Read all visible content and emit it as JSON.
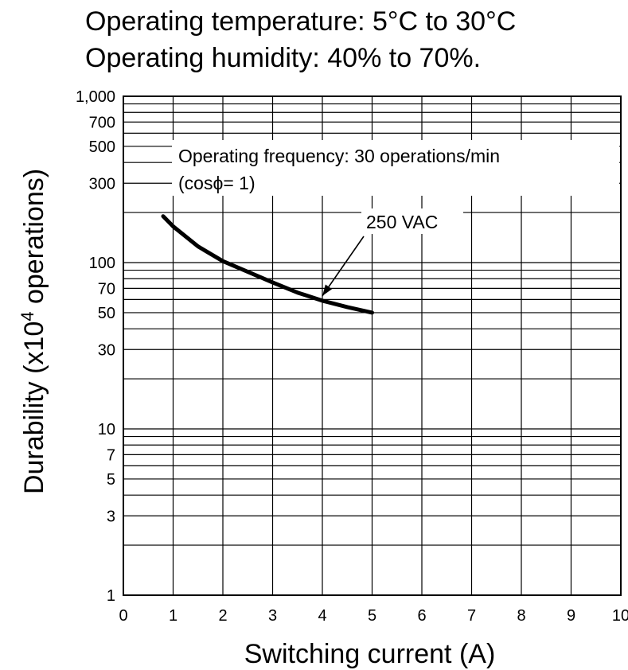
{
  "conditions": {
    "temperature": "Operating temperature: 5°C to 30°C",
    "humidity": "Operating humidity: 40% to 70%."
  },
  "chart_data": {
    "type": "line",
    "title": "",
    "xlabel": "Switching current (A)",
    "ylabel_prefix": "Durability (x10",
    "ylabel_exp": "4",
    "ylabel_suffix": " operations)",
    "ylabel": "Durability (x10^4 operations)",
    "x_scale": "linear",
    "y_scale": "log",
    "xlim": [
      0,
      10
    ],
    "ylim": [
      1,
      1000
    ],
    "grid": true,
    "x_ticks": [
      0,
      1,
      2,
      3,
      4,
      5,
      6,
      7,
      8,
      9,
      10
    ],
    "y_ticks": [
      {
        "value": 1,
        "label": "1"
      },
      {
        "value": 3,
        "label": "3"
      },
      {
        "value": 5,
        "label": "5"
      },
      {
        "value": 7,
        "label": "7"
      },
      {
        "value": 10,
        "label": "10"
      },
      {
        "value": 30,
        "label": "30"
      },
      {
        "value": 50,
        "label": "50"
      },
      {
        "value": 70,
        "label": "70"
      },
      {
        "value": 100,
        "label": "100"
      },
      {
        "value": 300,
        "label": "300"
      },
      {
        "value": 500,
        "label": "500"
      },
      {
        "value": 700,
        "label": "700"
      },
      {
        "value": 1000,
        "label": "1,000"
      }
    ],
    "y_gridlines": [
      1,
      2,
      3,
      4,
      5,
      6,
      7,
      8,
      9,
      10,
      20,
      30,
      40,
      50,
      60,
      70,
      80,
      90,
      100,
      200,
      300,
      400,
      500,
      600,
      700,
      800,
      900,
      1000
    ],
    "annotation": {
      "line1": "Operating frequency: 30 operations/min",
      "line2_prefix": "(cos",
      "line2_symbol": "ϕ",
      "line2_suffix": "= 1)"
    },
    "series": [
      {
        "name": "250 VAC",
        "x": [
          0.8,
          1.0,
          1.5,
          2.0,
          2.5,
          3.0,
          3.5,
          4.0,
          4.5,
          5.0
        ],
        "y": [
          190,
          165,
          125,
          102,
          88,
          76,
          66,
          59,
          54,
          50
        ]
      }
    ],
    "series_label": {
      "text": "250 VAC",
      "at_x": 4.0,
      "at_y": 59
    }
  }
}
